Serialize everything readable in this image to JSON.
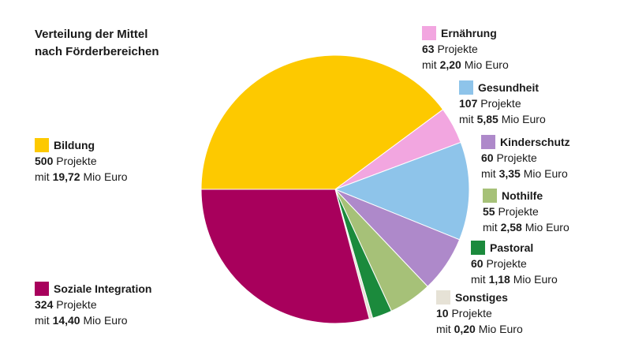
{
  "chart_data": {
    "type": "pie",
    "title": "Verteilung der Mittel",
    "subtitle": "nach Förderbereichen",
    "projects_word": "Projekte",
    "amount_prefix": "mit",
    "amount_unit": "Mio Euro",
    "value_unit": "Mio Euro",
    "slices": [
      {
        "label": "Bildung",
        "projects": "500",
        "amount": "19,72",
        "value": 19.72,
        "color": "#FDC900"
      },
      {
        "label": "Ernährung",
        "projects": "63",
        "amount": "2,20",
        "value": 2.2,
        "color": "#F2A6E0"
      },
      {
        "label": "Gesundheit",
        "projects": "107",
        "amount": "5,85",
        "value": 5.85,
        "color": "#8EC4EA"
      },
      {
        "label": "Kinderschutz",
        "projects": "60",
        "amount": "3,35",
        "value": 3.35,
        "color": "#AE89CA"
      },
      {
        "label": "Nothilfe",
        "projects": "55",
        "amount": "2,58",
        "value": 2.58,
        "color": "#A6C178"
      },
      {
        "label": "Pastoral",
        "projects": "60",
        "amount": "1,18",
        "value": 1.18,
        "color": "#1B8A3C"
      },
      {
        "label": "Sonstiges",
        "projects": "10",
        "amount": "0,20",
        "value": 0.2,
        "color": "#E6E2D6"
      },
      {
        "label": "Soziale Integration",
        "projects": "324",
        "amount": "14,40",
        "value": 14.4,
        "color": "#A8005C"
      }
    ]
  }
}
